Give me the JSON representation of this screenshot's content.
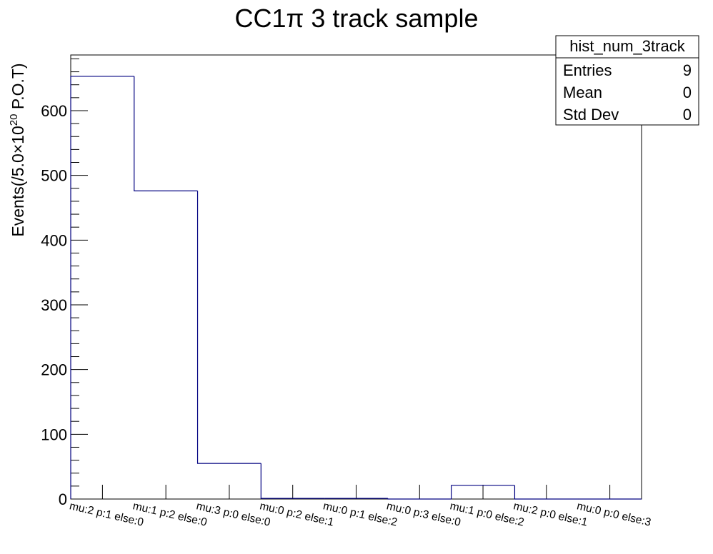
{
  "chart_data": {
    "type": "bar",
    "title_main": "CC1π 3 track sample",
    "ylabel": {
      "prefix": "Events(/5.0×10",
      "exponent": "20",
      "suffix": " P.O.T)"
    },
    "xlabel": "",
    "ylim": [
      0,
      686
    ],
    "yticks": [
      0,
      100,
      200,
      300,
      400,
      500,
      600
    ],
    "categories": [
      "mu:2 p:1 else:0",
      "mu:1 p:2 else:0",
      "mu:3 p:0 else:0",
      "mu:0 p:2 else:1",
      "mu:0 p:1 else:2",
      "mu:0 p:3 else:0",
      "mu:1 p:0 else:2",
      "mu:2 p:0 else:1",
      "mu:0 p:0 else:3"
    ],
    "values": [
      653,
      476,
      55,
      1,
      1,
      0,
      21,
      0,
      0
    ],
    "line_color": "#000080",
    "grid": false,
    "stats_box": {
      "name": "hist_num_3track",
      "placement": "top-right",
      "rows": [
        {
          "label": "Entries",
          "value": "9"
        },
        {
          "label": "Mean",
          "value": "0"
        },
        {
          "label": "Std Dev",
          "value": "0"
        }
      ]
    }
  }
}
